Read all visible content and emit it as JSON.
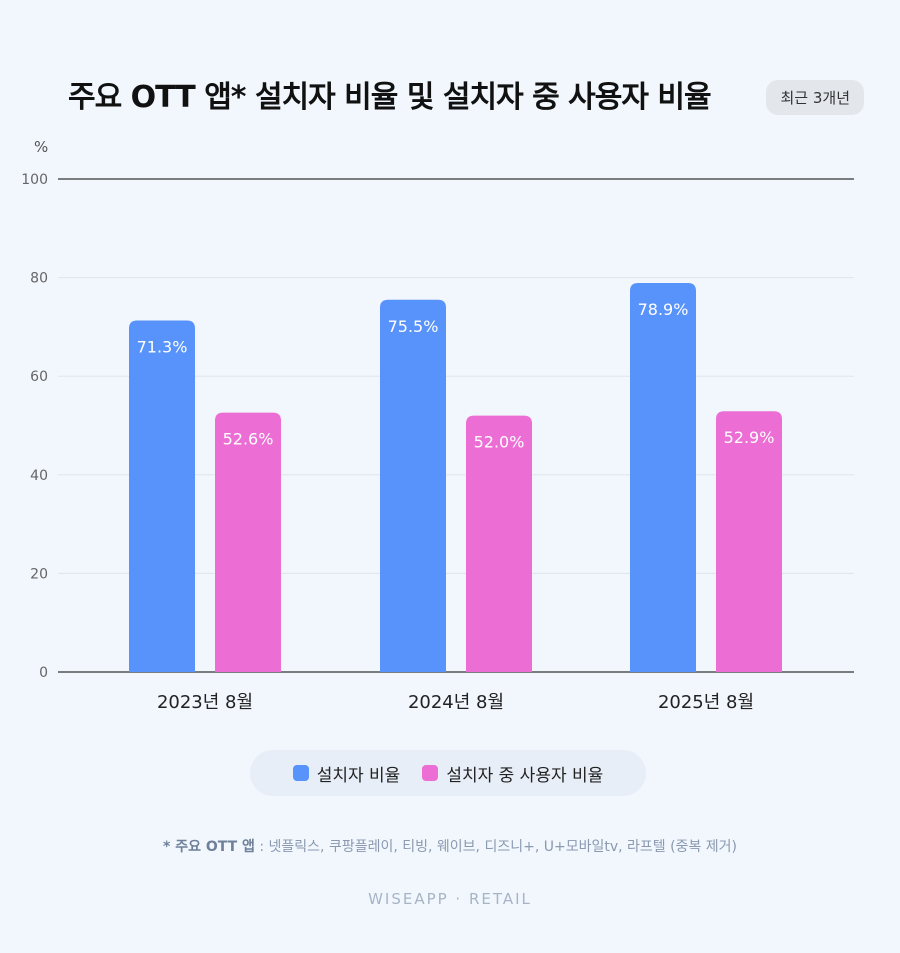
{
  "header": {
    "title": "주요 OTT 앱* 설치자 비율 및 설치자 중 사용자 비율",
    "period_badge": "최근 3개년"
  },
  "chart_data": {
    "type": "bar",
    "title": "주요 OTT 앱* 설치자 비율 및 설치자 중 사용자 비율",
    "unit_label": "%",
    "categories": [
      "2023년 8월",
      "2024년 8월",
      "2025년 8월"
    ],
    "series": [
      {
        "name": "설치자 비율",
        "values": [
          71.3,
          75.5,
          78.9
        ],
        "labels": [
          "71.3%",
          "75.5%",
          "78.9%"
        ],
        "color": "#5892fb"
      },
      {
        "name": "설치자 중 사용자 비율",
        "values": [
          52.6,
          52.0,
          52.9
        ],
        "labels": [
          "52.6%",
          "52.0%",
          "52.9%"
        ],
        "color": "#ec6ed4"
      }
    ],
    "ylim": [
      0,
      100
    ],
    "yticks": [
      0,
      20,
      40,
      60,
      80,
      100
    ],
    "grid": true,
    "legend_position": "bottom-center"
  },
  "legend": {
    "items": [
      {
        "label": "설치자 비율",
        "color": "#5892fb"
      },
      {
        "label": "설치자 중 사용자 비율",
        "color": "#ec6ed4"
      }
    ]
  },
  "footnote": {
    "prefix": "* 주요 OTT 앱",
    "text": " : 넷플릭스, 쿠팡플레이, 티빙, 웨이브, 디즈니+, U+모바일tv, 라프텔 (중복 제거)"
  },
  "brand": "WISEAPP · RETAIL"
}
